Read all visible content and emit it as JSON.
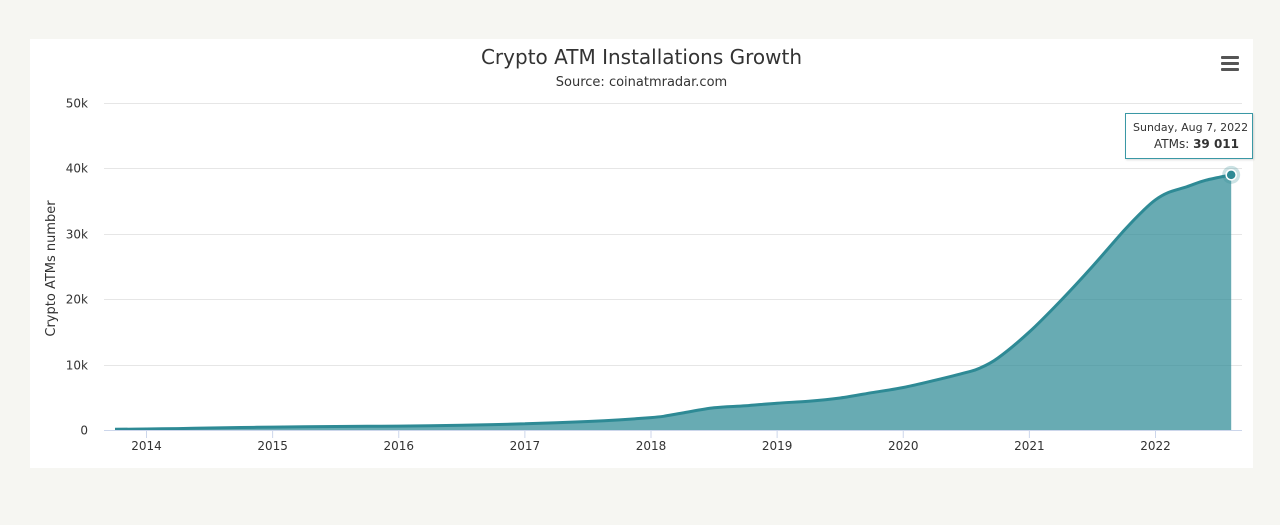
{
  "chart_data": {
    "type": "area",
    "title": "Crypto ATM Installations Growth",
    "subtitle": "Source: coinatmradar.com",
    "xlabel": "",
    "ylabel": "Crypto ATMs number",
    "xlim": [
      2013.75,
      2022.6
    ],
    "ylim": [
      0,
      50000
    ],
    "y_ticks": [
      0,
      10000,
      20000,
      30000,
      40000,
      50000
    ],
    "y_tick_labels": [
      "0",
      "10k",
      "20k",
      "30k",
      "40k",
      "50k"
    ],
    "x_ticks": [
      2014,
      2015,
      2016,
      2017,
      2018,
      2019,
      2020,
      2021,
      2022
    ],
    "x_tick_labels": [
      "2014",
      "2015",
      "2016",
      "2017",
      "2018",
      "2019",
      "2020",
      "2021",
      "2022"
    ],
    "grid": true,
    "color": "#2e8a95",
    "series": [
      {
        "name": "ATMs",
        "x": [
          2013.75,
          2014.0,
          2014.25,
          2014.5,
          2014.75,
          2015.0,
          2015.25,
          2015.5,
          2015.75,
          2016.0,
          2016.25,
          2016.5,
          2016.75,
          2017.0,
          2017.25,
          2017.5,
          2017.75,
          2018.0,
          2018.1,
          2018.25,
          2018.5,
          2018.75,
          2019.0,
          2019.25,
          2019.5,
          2019.75,
          2020.0,
          2020.25,
          2020.5,
          2020.6,
          2020.75,
          2021.0,
          2021.25,
          2021.5,
          2021.75,
          2021.9,
          2022.0,
          2022.1,
          2022.25,
          2022.4,
          2022.6
        ],
        "values": [
          100,
          150,
          220,
          300,
          380,
          450,
          500,
          540,
          570,
          600,
          650,
          720,
          820,
          950,
          1100,
          1300,
          1550,
          1900,
          2100,
          2600,
          3400,
          3700,
          4100,
          4400,
          4900,
          5700,
          6500,
          7600,
          8800,
          9400,
          11000,
          15000,
          19800,
          25000,
          30500,
          33500,
          35200,
          36300,
          37200,
          38200,
          39011
        ]
      }
    ],
    "tooltip": {
      "date": "Sunday, Aug 7, 2022",
      "series_label": "ATMs: ",
      "value_label": "39 011",
      "x": 2022.6,
      "y": 39011
    }
  },
  "menu": {
    "icon": "hamburger-menu-icon"
  }
}
